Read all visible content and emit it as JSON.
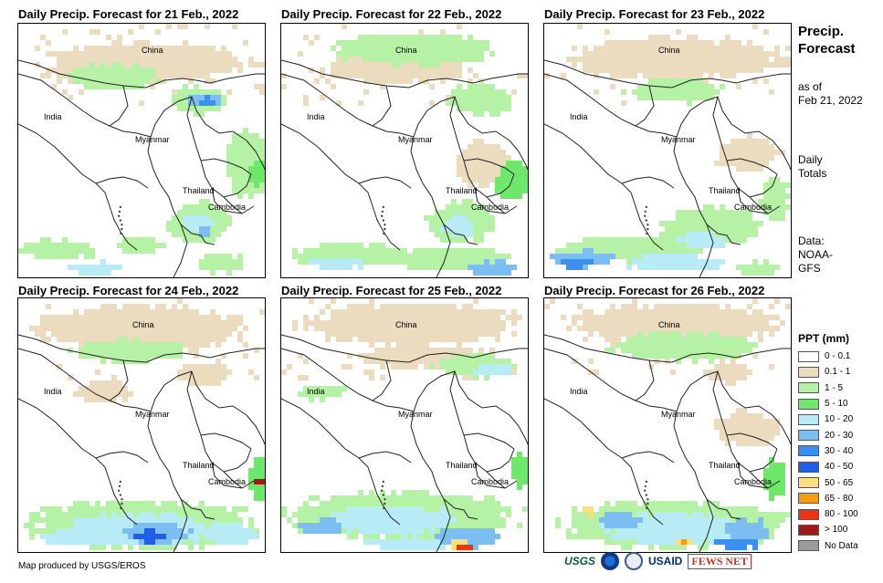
{
  "panels": [
    {
      "title": "Daily Precip. Forecast for 21 Feb., 2022"
    },
    {
      "title": "Daily Precip. Forecast for 22 Feb., 2022"
    },
    {
      "title": "Daily Precip. Forecast for 23 Feb., 2022"
    },
    {
      "title": "Daily Precip. Forecast for 24 Feb., 2022"
    },
    {
      "title": "Daily Precip. Forecast for 25 Feb., 2022"
    },
    {
      "title": "Daily Precip. Forecast for 26 Feb., 2022"
    }
  ],
  "map_labels": {
    "china": "China",
    "india": "India",
    "myanmar": "Myanmar",
    "thailand": "Thailand",
    "cambodia": "Cambodia"
  },
  "side": {
    "title": "Precip. Forecast",
    "asof_label": "as of",
    "asof_date": "Feb 21, 2022",
    "totals_line1": "Daily",
    "totals_line2": "Totals",
    "data_line1": "Data:",
    "data_line2": "NOAA-",
    "data_line3": "GFS"
  },
  "legend": {
    "title": "PPT (mm)",
    "items": [
      {
        "label": "0 - 0.1",
        "color": "#ffffff"
      },
      {
        "label": "0.1 - 1",
        "color": "#ecdcbf"
      },
      {
        "label": "1 - 5",
        "color": "#b5f2a6"
      },
      {
        "label": "5 - 10",
        "color": "#6ee86a"
      },
      {
        "label": "10 - 20",
        "color": "#b7ecf6"
      },
      {
        "label": "20 - 30",
        "color": "#7dbef2"
      },
      {
        "label": "30 - 40",
        "color": "#3b8ff0"
      },
      {
        "label": "40 - 50",
        "color": "#1f5ee8"
      },
      {
        "label": "50 - 65",
        "color": "#fbe07a"
      },
      {
        "label": "65 - 80",
        "color": "#f89a12"
      },
      {
        "label": "80 - 100",
        "color": "#ee3312"
      },
      {
        "label": "> 100",
        "color": "#a11a1a"
      },
      {
        "label": "No Data",
        "color": "#9a9a9a"
      }
    ]
  },
  "footer": {
    "credit": "Map produced by USGS/EROS"
  },
  "logos": {
    "usgs": "USGS",
    "usaid": "USAID",
    "fewsnet": "FEWS NET"
  }
}
